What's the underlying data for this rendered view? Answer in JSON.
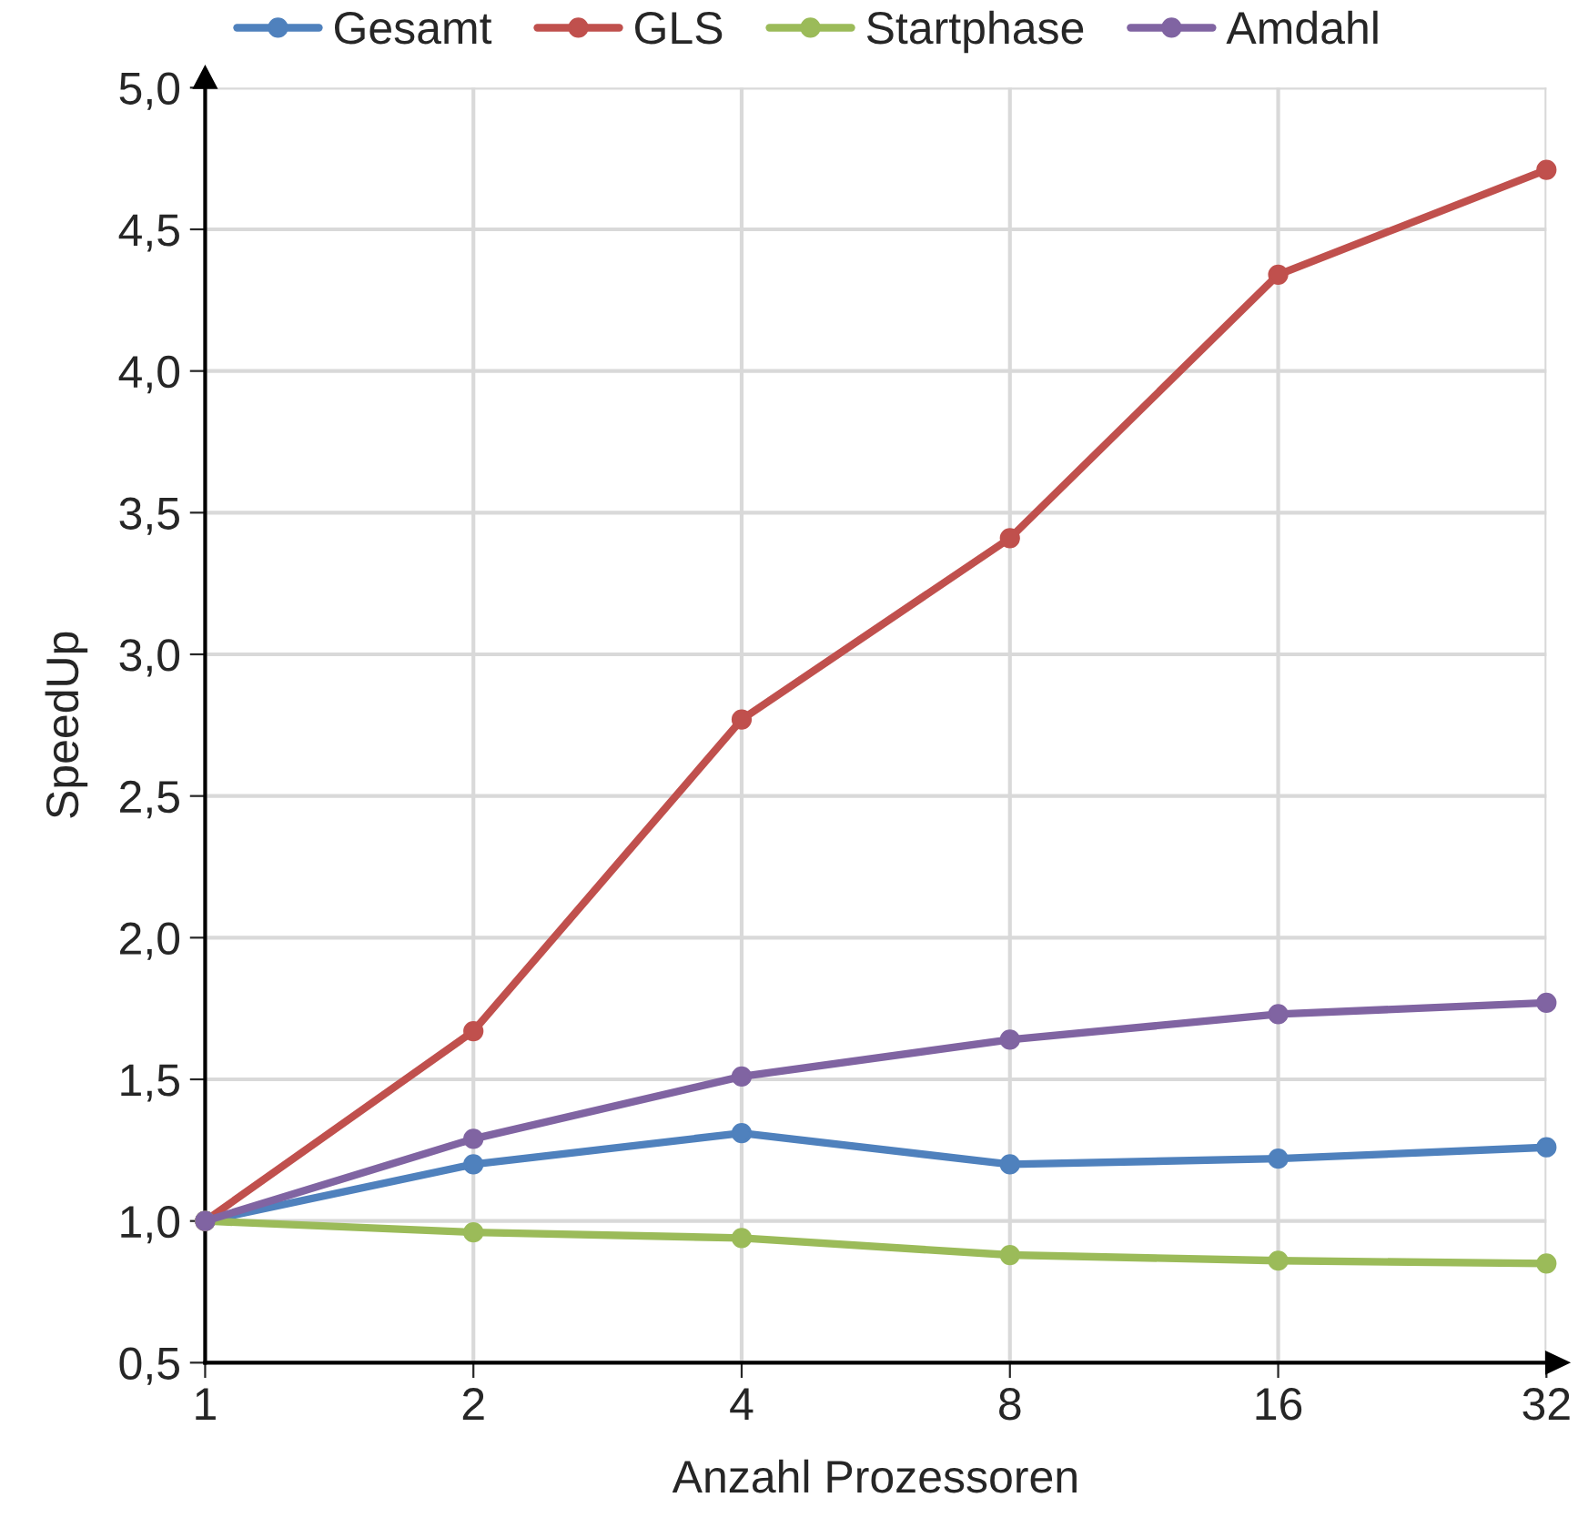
{
  "chart_data": {
    "type": "line",
    "xlabel": "Anzahl Prozessoren",
    "ylabel": "SpeedUp",
    "categories": [
      "1",
      "2",
      "4",
      "8",
      "16",
      "32"
    ],
    "series": [
      {
        "name": "Gesamt",
        "color": "#4f81bd",
        "values": [
          1.0,
          1.2,
          1.31,
          1.2,
          1.22,
          1.26
        ]
      },
      {
        "name": "GLS",
        "color": "#c0504d",
        "values": [
          1.0,
          1.67,
          2.77,
          3.41,
          4.34,
          4.71
        ]
      },
      {
        "name": "Startphase",
        "color": "#9bbb59",
        "values": [
          1.0,
          0.96,
          0.94,
          0.88,
          0.86,
          0.85
        ]
      },
      {
        "name": "Amdahl",
        "color": "#8064a2",
        "values": [
          1.0,
          1.29,
          1.51,
          1.64,
          1.73,
          1.77
        ]
      }
    ],
    "ylim": [
      0.5,
      5.0
    ],
    "yticks": [
      {
        "value": 0.5,
        "label": "0,5"
      },
      {
        "value": 1.0,
        "label": "1,0"
      },
      {
        "value": 1.5,
        "label": "1,5"
      },
      {
        "value": 2.0,
        "label": "2,0"
      },
      {
        "value": 2.5,
        "label": "2,5"
      },
      {
        "value": 3.0,
        "label": "3,0"
      },
      {
        "value": 3.5,
        "label": "3,5"
      },
      {
        "value": 4.0,
        "label": "4,0"
      },
      {
        "value": 4.5,
        "label": "4,5"
      },
      {
        "value": 5.0,
        "label": "5,0"
      }
    ],
    "grid": true,
    "legend": "top",
    "marker": "circle",
    "line_style": "solid"
  }
}
